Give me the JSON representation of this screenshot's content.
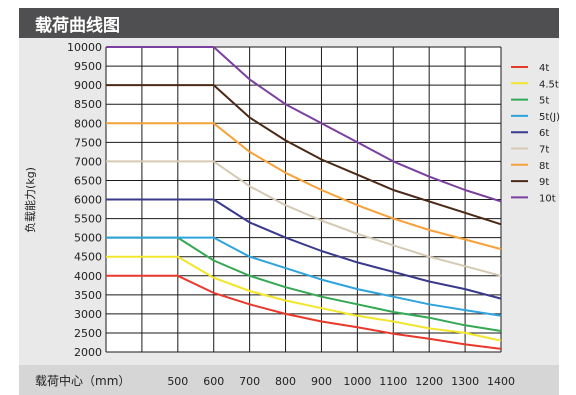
{
  "header": {
    "title": "载荷曲线图"
  },
  "colors": {
    "header_bg": "#4f4f51",
    "panel_bg": "#e9e9ea",
    "footer_bg": "#d6d6d7",
    "grid": "#1a1a1a"
  },
  "chart_data": {
    "type": "line",
    "title": "载荷曲线图",
    "xlabel": "载荷中心（mm）",
    "ylabel": "负载能力(kg)",
    "x_ticks": [
      500,
      600,
      700,
      800,
      900,
      1000,
      1100,
      1200,
      1300,
      1400
    ],
    "xlim": [
      300,
      1400
    ],
    "ylim": [
      2000,
      10000
    ],
    "y_ticks": [
      2000,
      2500,
      3000,
      3500,
      4000,
      4500,
      5000,
      5500,
      6000,
      6500,
      7000,
      7500,
      8000,
      8500,
      9000,
      9500,
      10000
    ],
    "grid": true,
    "legend_position": "right",
    "series": [
      {
        "name": "4t",
        "color": "#e8392b",
        "x": [
          300,
          500,
          600,
          700,
          800,
          900,
          1000,
          1100,
          1200,
          1300,
          1400
        ],
        "y": [
          4000,
          4000,
          3550,
          3250,
          3000,
          2800,
          2650,
          2480,
          2350,
          2200,
          2080
        ]
      },
      {
        "name": "4.5t",
        "color": "#f2e52b",
        "x": [
          300,
          500,
          600,
          700,
          800,
          900,
          1000,
          1100,
          1200,
          1300,
          1400
        ],
        "y": [
          4500,
          4500,
          3950,
          3600,
          3350,
          3150,
          2950,
          2800,
          2620,
          2500,
          2300
        ]
      },
      {
        "name": "5t",
        "color": "#34a853",
        "x": [
          300,
          500,
          600,
          700,
          800,
          900,
          1000,
          1100,
          1200,
          1300,
          1400
        ],
        "y": [
          5000,
          5000,
          4400,
          4000,
          3700,
          3450,
          3250,
          3050,
          2900,
          2700,
          2550
        ]
      },
      {
        "name": "5t(J)",
        "color": "#2ea3dc",
        "x": [
          300,
          600,
          700,
          800,
          900,
          1000,
          1100,
          1200,
          1300,
          1400
        ],
        "y": [
          5000,
          5000,
          4500,
          4200,
          3900,
          3650,
          3450,
          3250,
          3100,
          2950
        ]
      },
      {
        "name": "6t",
        "color": "#3a3a8c",
        "x": [
          300,
          600,
          700,
          800,
          900,
          1000,
          1100,
          1200,
          1300,
          1400
        ],
        "y": [
          6000,
          6000,
          5400,
          5000,
          4650,
          4350,
          4100,
          3850,
          3650,
          3400
        ]
      },
      {
        "name": "7t",
        "color": "#d6c9b4",
        "x": [
          300,
          600,
          700,
          800,
          900,
          1000,
          1100,
          1200,
          1300,
          1400
        ],
        "y": [
          7000,
          7000,
          6350,
          5850,
          5450,
          5100,
          4800,
          4500,
          4250,
          4000
        ]
      },
      {
        "name": "8t",
        "color": "#f6a13a",
        "x": [
          300,
          600,
          700,
          800,
          900,
          1000,
          1100,
          1200,
          1300,
          1400
        ],
        "y": [
          8000,
          8000,
          7250,
          6700,
          6250,
          5850,
          5500,
          5200,
          4950,
          4700
        ]
      },
      {
        "name": "9t",
        "color": "#4a2a17",
        "x": [
          300,
          600,
          700,
          800,
          900,
          1000,
          1100,
          1200,
          1300,
          1400
        ],
        "y": [
          9000,
          9000,
          8150,
          7550,
          7050,
          6650,
          6250,
          5950,
          5650,
          5350
        ]
      },
      {
        "name": "10t",
        "color": "#7b3fa0",
        "x": [
          300,
          600,
          700,
          800,
          900,
          1000,
          1100,
          1200,
          1300,
          1400
        ],
        "y": [
          10000,
          10000,
          9150,
          8500,
          8000,
          7500,
          7000,
          6600,
          6250,
          5950
        ]
      }
    ]
  }
}
